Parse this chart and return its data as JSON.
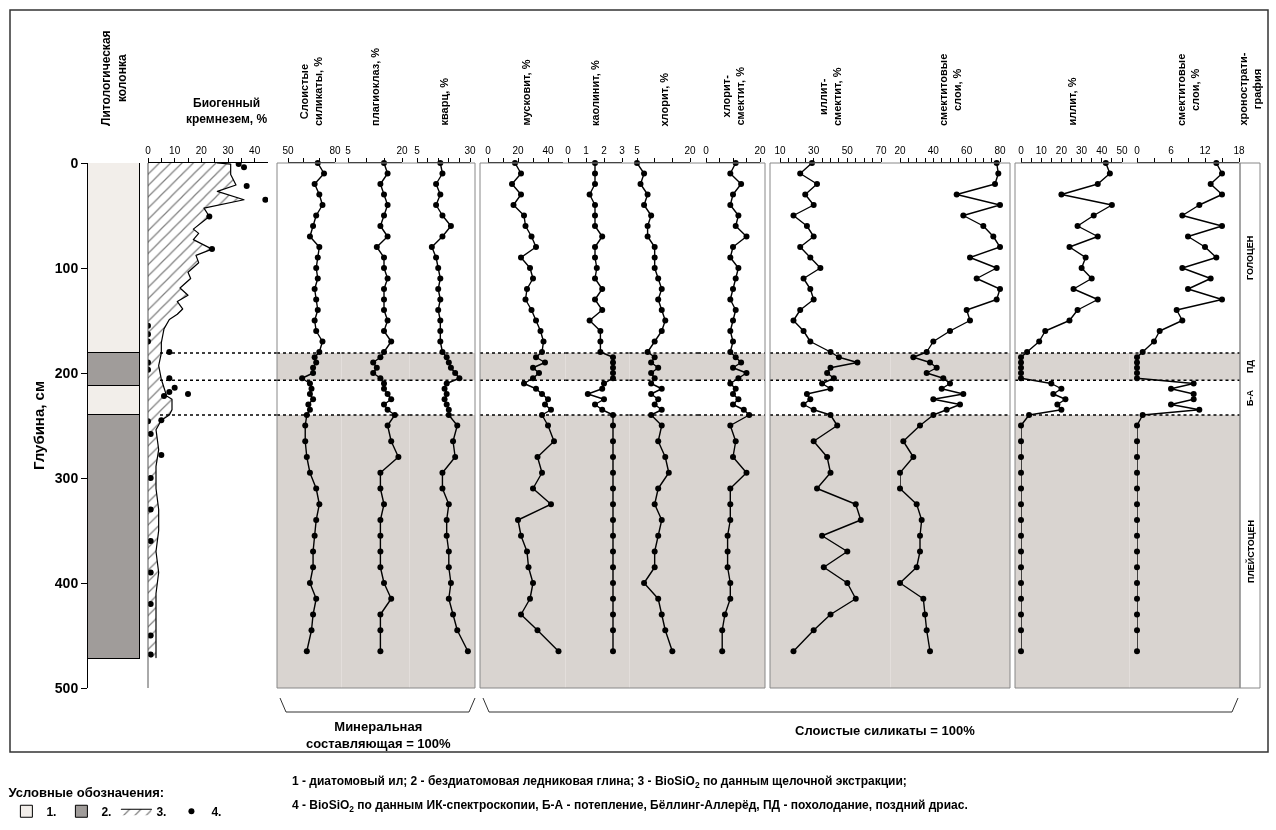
{
  "chart_data": [
    {
      "type": "bar",
      "title": "Литологическая\nколонка",
      "stacked": true,
      "categories": [
        null
      ],
      "ylim": [
        500,
        0
      ],
      "yticks": [
        0,
        100,
        200,
        300,
        400,
        500
      ],
      "ylabel": "Глубина, см",
      "tick_labels": "y",
      "legend": "bottom left",
      "legend_title": "Условные обозначения:",
      "series": [
        {
          "name": "1.",
          "color": "#f2eeea",
          "values": [
            181
          ]
        },
        {
          "name": "2.",
          "color": "#a09c9a",
          "values": [
            31
          ]
        },
        {
          "color": "#f2eeea",
          "values": [
            28
          ]
        },
        {
          "color": "#a09c9a",
          "values": [
            232
          ]
        }
      ],
      "annotations": [
        "1 - диатомовый ил; 2 - бездиатомовая ледниковая глина; 3 - BioSiO$_{2}$ по данным щелочной экстракции;",
        "4 - BioSiO$_{2}$ по данным ИК-спектроскопии, Б-А - потепление, Бёллинг-Аллерёд, ПД - похолодание, поздний дриас."
      ]
    },
    {
      "type": "area",
      "title": "Биогенный\nкремнезем, %",
      "orientation": "horizontal",
      "legend": "bottom left",
      "xlim": [
        0,
        45
      ],
      "xticks": [
        0,
        {
          "value": 5,
          "label": null
        },
        10,
        {
          "value": 15,
          "label": null
        },
        20,
        {
          "value": 25,
          "label": null
        },
        30,
        {
          "value": 35,
          "label": null
        },
        40
      ],
      "ylim": [
        500,
        0
      ],
      "tick_labels": "x",
      "series": [
        {
          "name": "3.",
          "type": "area",
          "color": "#000000",
          "x": [
            0,
            1,
            11,
            21,
            27,
            35,
            43,
            51,
            63,
            67,
            73,
            82,
            88,
            95,
            104,
            110,
            119,
            126,
            132,
            139,
            144,
            149,
            158,
            171,
            181,
            193,
            206,
            214,
            222,
            225,
            235,
            240,
            245,
            254,
            273,
            289,
            310,
            330,
            350,
            370,
            390,
            410,
            430,
            450,
            471
          ],
          "values": [
            26,
            31,
            31,
            33,
            26,
            36,
            21,
            23,
            17,
            19,
            17,
            24,
            18,
            19,
            15,
            16,
            12,
            15,
            11,
            13,
            11,
            8,
            6,
            5,
            5,
            4,
            5,
            6,
            7,
            9,
            9,
            8,
            5,
            3,
            4,
            3,
            3,
            4,
            4,
            3,
            4,
            3,
            3,
            3,
            3
          ]
        },
        {
          "name": "4.",
          "type": "scatter",
          "color": "#000000",
          "x": [
            1,
            4,
            22,
            35,
            51,
            82,
            155,
            163,
            170,
            180,
            190,
            197,
            205,
            214,
            218,
            220,
            222,
            245,
            246,
            258,
            278,
            300,
            330,
            360,
            390,
            420,
            450,
            468
          ],
          "values": [
            34,
            36,
            37,
            44,
            23,
            24,
            0,
            0,
            0,
            8,
            0,
            0,
            8,
            10,
            8,
            15,
            6,
            5,
            0,
            1,
            5,
            1,
            1,
            1,
            1,
            1,
            1,
            1
          ]
        }
      ],
      "ref_lines": [
        {
          "axis": "y",
          "value": 181,
          "line_style": "dotted",
          "color": "#000000"
        },
        {
          "axis": "y",
          "value": 207,
          "line_style": "dotted",
          "color": "#000000"
        },
        {
          "axis": "y",
          "value": 240,
          "line_style": "dotted",
          "color": "#000000"
        }
      ]
    },
    {
      "type": "line",
      "title": "Слоистые\nсиликаты, %",
      "orientation": "horizontal",
      "marker": "circle",
      "line_style": "solid",
      "xlim": [
        50,
        80
      ],
      "xticks": [
        50,
        {
          "value": 60,
          "label": null
        },
        {
          "value": 70,
          "label": null
        },
        80
      ],
      "ylim": [
        500,
        0
      ],
      "tick_labels": "x",
      "x": [
        0,
        10,
        20,
        30,
        40,
        50,
        60,
        70,
        80,
        90,
        100,
        110,
        120,
        130,
        140,
        150,
        160,
        170,
        180,
        185,
        190,
        195,
        200,
        205,
        210,
        215,
        220,
        225,
        230,
        235,
        240,
        250,
        265,
        280,
        295,
        310,
        325,
        340,
        355,
        370,
        385,
        400,
        415,
        430,
        445,
        465
      ],
      "series": [
        {
          "color": "#000000",
          "values": [
            69,
            73,
            67,
            70,
            72,
            68,
            66,
            64,
            70,
            69,
            68,
            69,
            67,
            68,
            69,
            67,
            68,
            72,
            70,
            67,
            68,
            66,
            66,
            59,
            64,
            65,
            64,
            66,
            63,
            64,
            62,
            61,
            61,
            62,
            64,
            68,
            70,
            68,
            67,
            66,
            66,
            64,
            68,
            66,
            65,
            62
          ]
        }
      ],
      "bands": [
        {
          "axis": "y",
          "from": 181,
          "to": 207,
          "color": "#d9d4d0"
        },
        {
          "axis": "y",
          "from": 240,
          "to": 500,
          "color": "#d9d4d0"
        }
      ],
      "ref_lines": [
        {
          "axis": "y",
          "value": 181,
          "line_style": "dotted",
          "color": "#000000"
        },
        {
          "axis": "y",
          "value": 207,
          "line_style": "dotted",
          "color": "#000000"
        },
        {
          "axis": "y",
          "value": 240,
          "line_style": "dotted",
          "color": "#000000"
        }
      ],
      "annotations": [
        "Минеральная\nсоставляющая = 100%"
      ]
    },
    {
      "type": "line",
      "title": "плагиоклаз, %",
      "orientation": "horizontal",
      "marker": "circle",
      "line_style": "solid",
      "xlim": [
        5,
        20
      ],
      "xticks": [
        5,
        {
          "value": 10,
          "label": null
        },
        {
          "value": 15,
          "label": null
        },
        20
      ],
      "ylim": [
        500,
        0
      ],
      "tick_labels": "x",
      "x": [
        0,
        10,
        20,
        30,
        40,
        50,
        60,
        70,
        80,
        90,
        100,
        110,
        120,
        130,
        140,
        150,
        160,
        170,
        180,
        185,
        190,
        195,
        200,
        205,
        210,
        215,
        220,
        225,
        230,
        235,
        240,
        250,
        265,
        280,
        295,
        310,
        325,
        340,
        355,
        370,
        385,
        400,
        415,
        430,
        445,
        465
      ],
      "series": [
        {
          "color": "#000000",
          "values": [
            15,
            16,
            14,
            15,
            16,
            15,
            14,
            16,
            13,
            15,
            15,
            16,
            15,
            15,
            15,
            16,
            15,
            17,
            15,
            14,
            12,
            13,
            12,
            14,
            15,
            15,
            16,
            17,
            15,
            16,
            18,
            16,
            17,
            19,
            14,
            14,
            15,
            14,
            14,
            14,
            14,
            15,
            17,
            14,
            14,
            14
          ]
        }
      ],
      "bands": [
        {
          "axis": "y",
          "from": 181,
          "to": 207,
          "color": "#d9d4d0"
        },
        {
          "axis": "y",
          "from": 240,
          "to": 500,
          "color": "#d9d4d0"
        }
      ],
      "ref_lines": [
        {
          "axis": "y",
          "value": 181,
          "line_style": "dotted",
          "color": "#000000"
        },
        {
          "axis": "y",
          "value": 207,
          "line_style": "dotted",
          "color": "#000000"
        },
        {
          "axis": "y",
          "value": 240,
          "line_style": "dotted",
          "color": "#000000"
        }
      ]
    },
    {
      "type": "line",
      "title": "кварц, %",
      "orientation": "horizontal",
      "marker": "circle",
      "line_style": "solid",
      "xlim": [
        5,
        30
      ],
      "xticks": [
        5,
        {
          "value": 10,
          "label": null
        },
        {
          "value": 15,
          "label": null
        },
        {
          "value": 20,
          "label": null
        },
        {
          "value": 25,
          "label": null
        },
        30
      ],
      "ylim": [
        500,
        0
      ],
      "tick_labels": "x",
      "x": [
        0,
        10,
        20,
        30,
        40,
        50,
        60,
        70,
        80,
        90,
        100,
        110,
        120,
        130,
        140,
        150,
        160,
        170,
        180,
        185,
        190,
        195,
        200,
        205,
        210,
        215,
        220,
        225,
        230,
        235,
        240,
        250,
        265,
        280,
        295,
        310,
        325,
        340,
        355,
        370,
        385,
        400,
        415,
        430,
        445,
        465
      ],
      "series": [
        {
          "color": "#000000",
          "values": [
            16,
            17,
            14,
            16,
            14,
            17,
            21,
            17,
            12,
            14,
            15,
            16,
            15,
            16,
            15,
            16,
            16,
            16,
            17,
            19,
            20,
            21,
            23,
            25,
            19,
            18,
            19,
            18,
            19,
            20,
            20,
            24,
            22,
            23,
            17,
            17,
            20,
            19,
            19,
            20,
            20,
            21,
            20,
            22,
            24,
            29
          ]
        }
      ],
      "bands": [
        {
          "axis": "y",
          "from": 181,
          "to": 207,
          "color": "#d9d4d0"
        },
        {
          "axis": "y",
          "from": 240,
          "to": 500,
          "color": "#d9d4d0"
        }
      ],
      "ref_lines": [
        {
          "axis": "y",
          "value": 181,
          "line_style": "dotted",
          "color": "#000000"
        },
        {
          "axis": "y",
          "value": 207,
          "line_style": "dotted",
          "color": "#000000"
        },
        {
          "axis": "y",
          "value": 240,
          "line_style": "dotted",
          "color": "#000000"
        }
      ]
    },
    {
      "type": "line",
      "title": "мусковит, %",
      "orientation": "horizontal",
      "marker": "circle",
      "line_style": "solid",
      "xlim": [
        0,
        50
      ],
      "xticks": [
        0,
        {
          "value": 10,
          "label": null
        },
        20,
        {
          "value": 30,
          "label": null
        },
        40
      ],
      "ylim": [
        500,
        0
      ],
      "tick_labels": "x",
      "x": [
        0,
        10,
        20,
        30,
        40,
        50,
        60,
        70,
        80,
        90,
        100,
        110,
        120,
        130,
        140,
        150,
        160,
        170,
        180,
        185,
        190,
        195,
        200,
        205,
        210,
        215,
        220,
        225,
        230,
        235,
        240,
        250,
        265,
        280,
        295,
        310,
        325,
        340,
        355,
        370,
        385,
        400,
        415,
        430,
        445,
        465
      ],
      "series": [
        {
          "color": "#000000",
          "values": [
            18,
            22,
            16,
            22,
            17,
            24,
            25,
            29,
            32,
            22,
            28,
            30,
            26,
            25,
            29,
            32,
            35,
            37,
            36,
            32,
            38,
            30,
            34,
            30,
            24,
            32,
            36,
            40,
            38,
            42,
            36,
            40,
            44,
            33,
            36,
            30,
            42,
            20,
            22,
            26,
            27,
            30,
            28,
            22,
            33,
            47
          ]
        }
      ],
      "bands": [
        {
          "axis": "y",
          "from": 181,
          "to": 207,
          "color": "#d9d4d0"
        },
        {
          "axis": "y",
          "from": 240,
          "to": 500,
          "color": "#d9d4d0"
        }
      ],
      "ref_lines": [
        {
          "axis": "y",
          "value": 181,
          "line_style": "dotted",
          "color": "#000000"
        },
        {
          "axis": "y",
          "value": 207,
          "line_style": "dotted",
          "color": "#000000"
        },
        {
          "axis": "y",
          "value": 240,
          "line_style": "dotted",
          "color": "#000000"
        }
      ],
      "annotations": [
        "Слоистые силикаты = 100%"
      ]
    },
    {
      "type": "line",
      "title": "каолинит, %",
      "orientation": "horizontal",
      "marker": "circle",
      "line_style": "solid",
      "xlim": [
        0,
        3
      ],
      "xticks": [
        0,
        1,
        2,
        3
      ],
      "ylim": [
        500,
        0
      ],
      "tick_labels": "x",
      "x": [
        0,
        10,
        20,
        30,
        40,
        50,
        60,
        70,
        80,
        90,
        100,
        110,
        120,
        130,
        140,
        150,
        160,
        170,
        180,
        185,
        190,
        195,
        200,
        205,
        210,
        215,
        220,
        225,
        230,
        235,
        240,
        250,
        265,
        280,
        295,
        310,
        325,
        340,
        355,
        370,
        385,
        400,
        415,
        430,
        445,
        465
      ],
      "series": [
        {
          "color": "#000000",
          "values": [
            1.5,
            1.5,
            1.5,
            1.2,
            1.5,
            1.5,
            1.5,
            1.9,
            1.5,
            1.5,
            1.6,
            1.5,
            1.9,
            1.5,
            1.9,
            1.2,
            1.8,
            1.8,
            1.8,
            2.5,
            2.5,
            2.5,
            2.5,
            2.5,
            2.0,
            1.9,
            1.1,
            2.0,
            1.5,
            1.9,
            2.5,
            2.5,
            2.5,
            2.5,
            2.5,
            2.5,
            2.5,
            2.5,
            2.5,
            2.5,
            2.5,
            2.5,
            2.5,
            2.5,
            2.5,
            2.5
          ]
        }
      ],
      "bands": [
        {
          "axis": "y",
          "from": 181,
          "to": 207,
          "color": "#d9d4d0"
        },
        {
          "axis": "y",
          "from": 240,
          "to": 500,
          "color": "#d9d4d0"
        }
      ],
      "ref_lines": [
        {
          "axis": "y",
          "value": 181,
          "line_style": "dotted",
          "color": "#000000"
        },
        {
          "axis": "y",
          "value": 207,
          "line_style": "dotted",
          "color": "#000000"
        },
        {
          "axis": "y",
          "value": 240,
          "line_style": "dotted",
          "color": "#000000"
        }
      ]
    },
    {
      "type": "line",
      "title": "хлорит, %",
      "orientation": "horizontal",
      "marker": "circle",
      "line_style": "solid",
      "xlim": [
        5,
        20
      ],
      "xticks": [
        5,
        {
          "value": 10,
          "label": null
        },
        {
          "value": 15,
          "label": null
        },
        20
      ],
      "ylim": [
        500,
        0
      ],
      "tick_labels": "x",
      "x": [
        0,
        10,
        20,
        30,
        40,
        50,
        60,
        70,
        80,
        90,
        100,
        110,
        120,
        130,
        140,
        150,
        160,
        170,
        180,
        185,
        190,
        195,
        200,
        205,
        210,
        215,
        220,
        225,
        230,
        235,
        240,
        250,
        265,
        280,
        295,
        310,
        325,
        340,
        355,
        370,
        385,
        400,
        415,
        430,
        445,
        465
      ],
      "series": [
        {
          "color": "#000000",
          "values": [
            5,
            7,
            6,
            8,
            7,
            9,
            8,
            8,
            10,
            10,
            10,
            11,
            12,
            11,
            12,
            13,
            12,
            10,
            8,
            10,
            9,
            11,
            9,
            10,
            9,
            12,
            9,
            11,
            10,
            12,
            9,
            12,
            11,
            13,
            14,
            11,
            10,
            12,
            11,
            10,
            10,
            7,
            11,
            12,
            13,
            15
          ]
        }
      ],
      "bands": [
        {
          "axis": "y",
          "from": 181,
          "to": 207,
          "color": "#d9d4d0"
        },
        {
          "axis": "y",
          "from": 240,
          "to": 500,
          "color": "#d9d4d0"
        }
      ],
      "ref_lines": [
        {
          "axis": "y",
          "value": 181,
          "line_style": "dotted",
          "color": "#000000"
        },
        {
          "axis": "y",
          "value": 207,
          "line_style": "dotted",
          "color": "#000000"
        },
        {
          "axis": "y",
          "value": 240,
          "line_style": "dotted",
          "color": "#000000"
        }
      ]
    },
    {
      "type": "line",
      "title": "хлорит-\nсмектит, %",
      "orientation": "horizontal",
      "marker": "circle",
      "line_style": "solid",
      "xlim": [
        0,
        20
      ],
      "xticks": [
        0,
        {
          "value": 5,
          "label": null
        },
        {
          "value": 10,
          "label": null
        },
        {
          "value": 15,
          "label": null
        },
        20
      ],
      "ylim": [
        500,
        0
      ],
      "tick_labels": "x",
      "x": [
        0,
        10,
        20,
        30,
        40,
        50,
        60,
        70,
        80,
        90,
        100,
        110,
        120,
        130,
        140,
        150,
        160,
        170,
        180,
        185,
        190,
        195,
        200,
        205,
        210,
        215,
        220,
        225,
        230,
        235,
        240,
        250,
        265,
        280,
        295,
        310,
        325,
        340,
        355,
        370,
        385,
        400,
        415,
        430,
        445,
        465
      ],
      "series": [
        {
          "color": "#000000",
          "values": [
            11,
            9,
            13,
            10,
            9,
            12,
            11,
            15,
            10,
            9,
            12,
            11,
            10,
            9,
            11,
            10,
            9,
            10,
            9,
            11,
            13,
            10,
            15,
            12,
            9,
            11,
            10,
            12,
            10,
            14,
            16,
            9,
            11,
            10,
            15,
            9,
            9,
            9,
            8,
            8,
            8,
            9,
            9,
            7,
            6,
            6
          ]
        }
      ],
      "bands": [
        {
          "axis": "y",
          "from": 181,
          "to": 207,
          "color": "#d9d4d0"
        },
        {
          "axis": "y",
          "from": 240,
          "to": 500,
          "color": "#d9d4d0"
        }
      ],
      "ref_lines": [
        {
          "axis": "y",
          "value": 181,
          "line_style": "dotted",
          "color": "#000000"
        },
        {
          "axis": "y",
          "value": 207,
          "line_style": "dotted",
          "color": "#000000"
        },
        {
          "axis": "y",
          "value": 240,
          "line_style": "dotted",
          "color": "#000000"
        }
      ]
    },
    {
      "type": "line",
      "title": "иллит-\nсмектит, %",
      "orientation": "horizontal",
      "marker": "circle",
      "line_style": "solid",
      "xlim": [
        10,
        70
      ],
      "xticks": [
        10,
        {
          "value": 15,
          "label": null
        },
        {
          "value": 20,
          "label": null
        },
        {
          "value": 25,
          "label": null
        },
        30,
        {
          "value": 35,
          "label": null
        },
        {
          "value": 40,
          "label": null
        },
        {
          "value": 45,
          "label": null
        },
        50,
        {
          "value": 55,
          "label": null
        },
        {
          "value": 60,
          "label": null
        },
        {
          "value": 65,
          "label": null
        },
        70
      ],
      "ylim": [
        500,
        0
      ],
      "tick_labels": "x",
      "x": [
        0,
        10,
        20,
        30,
        40,
        50,
        60,
        70,
        80,
        90,
        100,
        110,
        120,
        130,
        140,
        150,
        160,
        170,
        180,
        185,
        190,
        195,
        200,
        205,
        210,
        215,
        220,
        225,
        230,
        235,
        240,
        250,
        265,
        280,
        295,
        310,
        325,
        340,
        355,
        370,
        385,
        400,
        415,
        430,
        445,
        465
      ],
      "series": [
        {
          "color": "#000000",
          "values": [
            29,
            22,
            32,
            25,
            30,
            18,
            26,
            30,
            22,
            28,
            34,
            24,
            28,
            30,
            22,
            18,
            24,
            28,
            40,
            45,
            56,
            40,
            38,
            42,
            35,
            40,
            26,
            28,
            24,
            30,
            40,
            44,
            30,
            38,
            40,
            32,
            55,
            58,
            35,
            50,
            36,
            50,
            55,
            40,
            30,
            18
          ]
        }
      ],
      "bands": [
        {
          "axis": "y",
          "from": 181,
          "to": 207,
          "color": "#d9d4d0"
        },
        {
          "axis": "y",
          "from": 240,
          "to": 500,
          "color": "#d9d4d0"
        }
      ],
      "ref_lines": [
        {
          "axis": "y",
          "value": 181,
          "line_style": "dotted",
          "color": "#000000"
        },
        {
          "axis": "y",
          "value": 207,
          "line_style": "dotted",
          "color": "#000000"
        },
        {
          "axis": "y",
          "value": 240,
          "line_style": "dotted",
          "color": "#000000"
        }
      ]
    },
    {
      "type": "line",
      "title": "смектитовые\nслои, %",
      "orientation": "horizontal",
      "marker": "circle",
      "line_style": "solid",
      "xlim": [
        20,
        80
      ],
      "xticks": [
        20,
        {
          "value": 25,
          "label": null
        },
        {
          "value": 30,
          "label": null
        },
        {
          "value": 35,
          "label": null
        },
        40,
        {
          "value": 45,
          "label": null
        },
        {
          "value": 50,
          "label": null
        },
        {
          "value": 55,
          "label": null
        },
        60,
        {
          "value": 65,
          "label": null
        },
        {
          "value": 70,
          "label": null
        },
        {
          "value": 75,
          "label": null
        },
        80
      ],
      "ylim": [
        500,
        0
      ],
      "tick_labels": "x",
      "x": [
        0,
        10,
        20,
        30,
        40,
        50,
        60,
        70,
        80,
        90,
        100,
        110,
        120,
        130,
        140,
        150,
        160,
        170,
        180,
        185,
        190,
        195,
        200,
        205,
        210,
        215,
        220,
        225,
        230,
        235,
        240,
        250,
        265,
        280,
        295,
        310,
        325,
        340,
        355,
        370,
        385,
        400,
        415,
        430,
        445,
        465
      ],
      "series": [
        {
          "color": "#000000",
          "values": [
            78,
            79,
            77,
            54,
            80,
            58,
            70,
            76,
            80,
            62,
            78,
            66,
            80,
            78,
            60,
            62,
            50,
            40,
            36,
            28,
            38,
            42,
            36,
            46,
            50,
            45,
            58,
            40,
            56,
            48,
            40,
            32,
            22,
            28,
            20,
            20,
            30,
            33,
            32,
            32,
            30,
            20,
            34,
            35,
            36,
            38
          ]
        }
      ],
      "bands": [
        {
          "axis": "y",
          "from": 181,
          "to": 207,
          "color": "#d9d4d0"
        },
        {
          "axis": "y",
          "from": 240,
          "to": 500,
          "color": "#d9d4d0"
        }
      ],
      "ref_lines": [
        {
          "axis": "y",
          "value": 181,
          "line_style": "dotted",
          "color": "#000000"
        },
        {
          "axis": "y",
          "value": 207,
          "line_style": "dotted",
          "color": "#000000"
        },
        {
          "axis": "y",
          "value": 240,
          "line_style": "dotted",
          "color": "#000000"
        }
      ]
    },
    {
      "type": "line",
      "title": "иллит, %",
      "orientation": "horizontal",
      "marker": "circle",
      "line_style": "solid",
      "xlim": [
        0,
        50
      ],
      "xticks": [
        0,
        {
          "value": 5,
          "label": null
        },
        10,
        {
          "value": 15,
          "label": null
        },
        20,
        {
          "value": 25,
          "label": null
        },
        30,
        {
          "value": 35,
          "label": null
        },
        40,
        {
          "value": 45,
          "label": null
        },
        50
      ],
      "ylim": [
        500,
        0
      ],
      "tick_labels": "x",
      "x": [
        0,
        10,
        20,
        30,
        40,
        50,
        60,
        70,
        80,
        90,
        100,
        110,
        120,
        130,
        140,
        150,
        160,
        170,
        180,
        185,
        190,
        195,
        200,
        205,
        210,
        215,
        220,
        225,
        230,
        235,
        240,
        250,
        265,
        280,
        295,
        310,
        325,
        340,
        355,
        370,
        385,
        400,
        415,
        430,
        445,
        465
      ],
      "series": [
        {
          "color": "#000000",
          "values": [
            42,
            44,
            38,
            20,
            45,
            36,
            28,
            38,
            24,
            32,
            30,
            35,
            26,
            38,
            28,
            24,
            12,
            9,
            3,
            0,
            0,
            0,
            0,
            0,
            15,
            20,
            16,
            22,
            18,
            20,
            4,
            0,
            0,
            0,
            0,
            0,
            0,
            0,
            0,
            0,
            0,
            0,
            0,
            0,
            0,
            0
          ]
        }
      ],
      "bands": [
        {
          "axis": "y",
          "from": 181,
          "to": 207,
          "color": "#d9d4d0"
        },
        {
          "axis": "y",
          "from": 240,
          "to": 500,
          "color": "#d9d4d0"
        }
      ],
      "ref_lines": [
        {
          "axis": "y",
          "value": 181,
          "line_style": "dotted",
          "color": "#000000"
        },
        {
          "axis": "y",
          "value": 207,
          "line_style": "dotted",
          "color": "#000000"
        },
        {
          "axis": "y",
          "value": 240,
          "line_style": "dotted",
          "color": "#000000"
        }
      ]
    },
    {
      "type": "line",
      "title": "смектитовые\nслои, %",
      "orientation": "horizontal",
      "marker": "circle",
      "line_style": "solid",
      "xlim": [
        0,
        18
      ],
      "xticks": [
        0,
        {
          "value": 3,
          "label": null
        },
        6,
        {
          "value": 9,
          "label": null
        },
        12,
        {
          "value": 15,
          "label": null
        },
        18
      ],
      "ylim": [
        500,
        0
      ],
      "tick_labels": "x",
      "x": [
        0,
        10,
        20,
        30,
        40,
        50,
        60,
        70,
        80,
        90,
        100,
        110,
        120,
        130,
        140,
        150,
        160,
        170,
        180,
        185,
        190,
        195,
        200,
        205,
        210,
        215,
        220,
        225,
        230,
        235,
        240,
        250,
        265,
        280,
        295,
        310,
        325,
        340,
        355,
        370,
        385,
        400,
        415,
        430,
        445,
        465
      ],
      "series": [
        {
          "color": "#000000",
          "values": [
            14,
            15,
            13,
            15,
            11,
            8,
            15,
            9,
            12,
            14,
            8,
            13,
            9,
            15,
            7,
            8,
            4,
            3,
            1,
            0,
            0,
            0,
            0,
            0,
            10,
            6,
            10,
            10,
            6,
            11,
            1,
            0,
            0,
            0,
            0,
            0,
            0,
            0,
            0,
            0,
            0,
            0,
            0,
            0,
            0,
            0
          ]
        }
      ],
      "bands": [
        {
          "axis": "y",
          "from": 181,
          "to": 207,
          "color": "#d9d4d0"
        },
        {
          "axis": "y",
          "from": 240,
          "to": 500,
          "color": "#d9d4d0"
        }
      ],
      "ref_lines": [
        {
          "axis": "y",
          "value": 181,
          "line_style": "dotted",
          "color": "#000000"
        },
        {
          "axis": "y",
          "value": 207,
          "line_style": "dotted",
          "color": "#000000"
        },
        {
          "axis": "y",
          "value": 240,
          "line_style": "dotted",
          "color": "#000000"
        }
      ]
    },
    {
      "type": "other",
      "title": "хронострати-\nграфия",
      "annotations": [
        "ГОЛОЦЕН",
        "ПД",
        "Б-А",
        "ПЛЕЙСТОЦЕН"
      ]
    }
  ]
}
